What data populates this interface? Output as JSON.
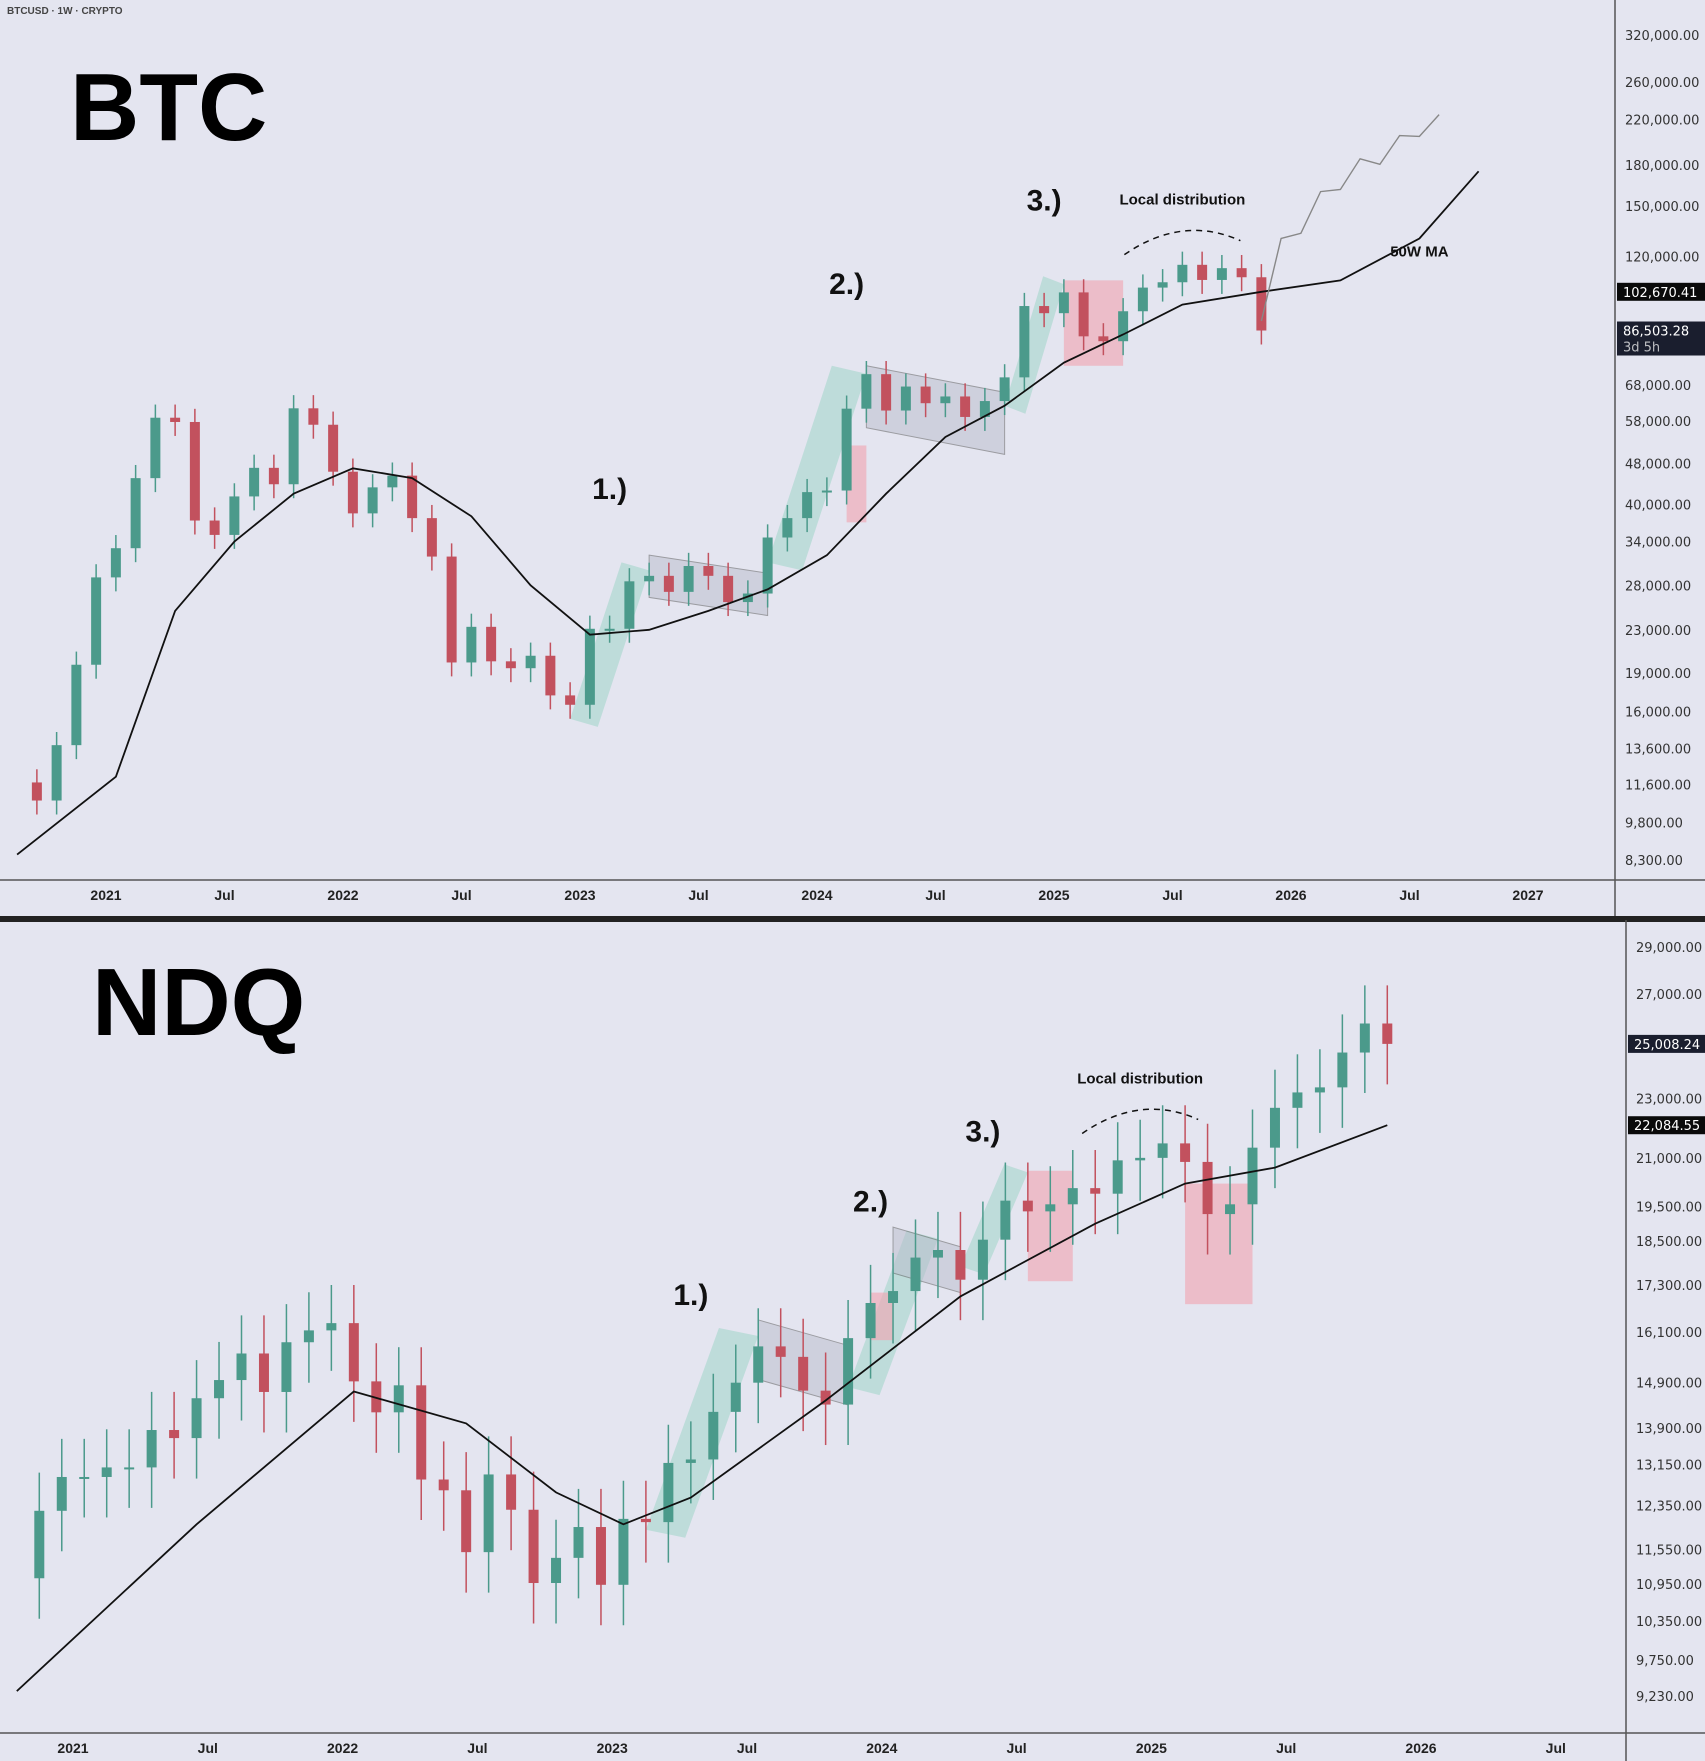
{
  "header": "BTCUSD · 1W · CRYPTO",
  "colors": {
    "bg": "#e4e5f0",
    "up": "#4b9a8b",
    "down": "#c2515e",
    "ma": "#111111",
    "projection": "#888888",
    "green_zone": "#9fd6c9",
    "red_zone": "#f0a8b4",
    "channel": "#b9bccb"
  },
  "chart_data": [
    {
      "type": "candlestick",
      "title": "BTC",
      "scale": "log",
      "ylim": [
        8300,
        340000
      ],
      "xlim": [
        "2020-08",
        "2027-04"
      ],
      "yticks": [
        "320,000.00",
        "260,000.00",
        "220,000.00",
        "180,000.00",
        "150,000.00",
        "120,000.00",
        "68,000.00",
        "58,000.00",
        "48,000.00",
        "40,000.00",
        "34,000.00",
        "28,000.00",
        "23,000.00",
        "19,000.00",
        "16,000.00",
        "13,600.00",
        "11,600.00",
        "9,800.00",
        "8,300.00"
      ],
      "xticks": [
        "2021",
        "Jul",
        "2022",
        "Jul",
        "2023",
        "Jul",
        "2024",
        "Jul",
        "2025",
        "Jul",
        "2026",
        "Jul",
        "2027"
      ],
      "price_labels": [
        {
          "text": "102,670.41",
          "value": 102670.41,
          "style": "ma"
        },
        {
          "text": "86,503.28",
          "sub": "3d 5h",
          "value": 86503.28,
          "style": "last"
        }
      ],
      "series": [
        {
          "x": [
            "2020-08",
            "2020-09",
            "2020-10",
            "2020-11",
            "2020-12",
            "2021-01",
            "2021-02",
            "2021-03",
            "2021-04",
            "2021-05",
            "2021-06",
            "2021-07",
            "2021-08",
            "2021-09",
            "2021-10",
            "2021-11",
            "2021-12",
            "2022-01",
            "2022-02",
            "2022-03",
            "2022-04",
            "2022-05",
            "2022-06",
            "2022-07",
            "2022-08",
            "2022-09",
            "2022-10",
            "2022-11",
            "2022-12",
            "2023-01",
            "2023-02",
            "2023-03",
            "2023-04",
            "2023-05",
            "2023-06",
            "2023-07",
            "2023-08",
            "2023-09",
            "2023-10",
            "2023-11",
            "2023-12",
            "2024-01",
            "2024-02",
            "2024-03",
            "2024-04",
            "2024-05",
            "2024-06",
            "2024-07",
            "2024-08",
            "2024-09",
            "2024-10",
            "2024-11",
            "2024-12",
            "2025-01",
            "2025-02",
            "2025-03",
            "2025-04",
            "2025-05",
            "2025-06",
            "2025-07",
            "2025-08",
            "2025-09",
            "2025-10",
            "2025-11"
          ],
          "close": [
            11700,
            10800,
            13800,
            19700,
            29000,
            33000,
            45000,
            58800,
            57700,
            37300,
            35000,
            41500,
            47100,
            43800,
            61300,
            57000,
            46300,
            38500,
            43200,
            45500,
            37700,
            31800,
            19900,
            23300,
            20000,
            19400,
            20500,
            17200,
            16500,
            23100,
            23100,
            28500,
            29200,
            27200,
            30500,
            29200,
            26000,
            27000,
            34600,
            37700,
            42300,
            42600,
            61200,
            71300,
            60700,
            67500,
            62700,
            64600,
            59000,
            63300,
            70300,
            96400,
            93400,
            102400,
            84300,
            82500,
            94200,
            104600,
            107100,
            115700,
            108200,
            114000,
            109500,
            86503
          ]
        },
        {
          "name": "50W MA",
          "x": [
            "2020-08",
            "2021-01",
            "2021-04",
            "2021-07",
            "2021-10",
            "2022-01",
            "2022-04",
            "2022-07",
            "2022-10",
            "2023-01",
            "2023-04",
            "2023-07",
            "2023-10",
            "2024-01",
            "2024-04",
            "2024-07",
            "2024-10",
            "2025-01",
            "2025-04",
            "2025-07",
            "2025-11",
            "2026-03",
            "2026-07",
            "2026-10"
          ],
          "values": [
            8500,
            12000,
            25000,
            34000,
            42000,
            47000,
            45000,
            38000,
            28000,
            22500,
            23000,
            25000,
            27500,
            32000,
            42000,
            54000,
            62000,
            75000,
            85000,
            97000,
            102670,
            108000,
            130000,
            175000
          ]
        },
        {
          "x": [
            "2025-11",
            "2025-12",
            "2026-01",
            "2026-02",
            "2026-03",
            "2026-04",
            "2026-05",
            "2026-06",
            "2026-07",
            "2026-08"
          ],
          "values": [
            95000,
            130000,
            140000,
            160000,
            170000,
            185000,
            190000,
            205000,
            215000,
            225000
          ]
        }
      ],
      "annotations": [
        {
          "text": "1.)",
          "x": "2023-02",
          "y": 41000
        },
        {
          "text": "2.)",
          "x": "2024-02",
          "y": 101600
        },
        {
          "text": "3.)",
          "x": "2024-12",
          "y": 147000
        },
        {
          "text": "Local distribution",
          "x": "2025-07",
          "y": 151000
        },
        {
          "text": "50W MA",
          "x": "2026-07",
          "y": 120000
        }
      ],
      "zones": [
        {
          "kind": "green",
          "x": [
            "2022-12",
            "2023-04"
          ],
          "y": [
            15500,
            31000
          ]
        },
        {
          "kind": "channel",
          "x": [
            "2023-04",
            "2023-10"
          ],
          "y": [
            24500,
            32000
          ]
        },
        {
          "kind": "green",
          "x": [
            "2023-10",
            "2024-03"
          ],
          "y": [
            31000,
            74000
          ]
        },
        {
          "kind": "red",
          "x": [
            "2024-02",
            "2024-03"
          ],
          "y": [
            37000,
            52000
          ]
        },
        {
          "kind": "channel",
          "x": [
            "2024-03",
            "2024-10"
          ],
          "y": [
            50000,
            74000
          ]
        },
        {
          "kind": "green",
          "x": [
            "2024-10",
            "2025-01"
          ],
          "y": [
            62000,
            110000
          ]
        },
        {
          "kind": "red",
          "x": [
            "2025-01",
            "2025-04"
          ],
          "y": [
            74000,
            108000
          ]
        }
      ]
    },
    {
      "type": "candlestick",
      "title": "NDQ",
      "scale": "log",
      "ylim": [
        8800,
        30500
      ],
      "xlim": [
        "2020-10",
        "2026-12"
      ],
      "yticks": [
        "29,000.00",
        "27,000.00",
        "23,000.00",
        "21,000.00",
        "19,500.00",
        "18,500.00",
        "17,300.00",
        "16,100.00",
        "14,900.00",
        "13,900.00",
        "13,150.00",
        "12,350.00",
        "11,550.00",
        "10,950.00",
        "10,350.00",
        "9,750.00",
        "9,230.00"
      ],
      "xticks": [
        "2021",
        "Jul",
        "2022",
        "Jul",
        "2023",
        "Jul",
        "2024",
        "Jul",
        "2025",
        "Jul",
        "2026",
        "Jul"
      ],
      "price_labels": [
        {
          "text": "25,008.24",
          "value": 25008.24,
          "style": "last"
        },
        {
          "text": "22,084.55",
          "value": 22084.55,
          "style": "ma"
        }
      ],
      "series": [
        {
          "x": [
            "2020-10",
            "2020-11",
            "2020-12",
            "2021-01",
            "2021-02",
            "2021-03",
            "2021-04",
            "2021-05",
            "2021-06",
            "2021-07",
            "2021-08",
            "2021-09",
            "2021-10",
            "2021-11",
            "2021-12",
            "2022-01",
            "2022-02",
            "2022-03",
            "2022-04",
            "2022-05",
            "2022-06",
            "2022-07",
            "2022-08",
            "2022-09",
            "2022-10",
            "2022-11",
            "2022-12",
            "2023-01",
            "2023-02",
            "2023-03",
            "2023-04",
            "2023-05",
            "2023-06",
            "2023-07",
            "2023-08",
            "2023-09",
            "2023-10",
            "2023-11",
            "2023-12",
            "2024-01",
            "2024-02",
            "2024-03",
            "2024-04",
            "2024-05",
            "2024-06",
            "2024-07",
            "2024-08",
            "2024-09",
            "2024-10",
            "2024-11",
            "2024-12",
            "2025-01",
            "2025-02",
            "2025-03",
            "2025-04",
            "2025-05",
            "2025-06",
            "2025-07",
            "2025-08",
            "2025-09",
            "2025-10",
            "2025-11"
          ],
          "close": [
            11050,
            12250,
            12900,
            12900,
            13090,
            13090,
            13860,
            13690,
            14550,
            14960,
            15580,
            14690,
            15850,
            16140,
            16320,
            14930,
            14240,
            14840,
            12850,
            12640,
            11500,
            12950,
            12270,
            10970,
            11400,
            11950,
            10940,
            12100,
            12040,
            13180,
            13250,
            14250,
            14900,
            15750,
            15500,
            14720,
            14410,
            15950,
            16830,
            17140,
            18040,
            18250,
            17440,
            18540,
            19680,
            19360,
            19570,
            20060,
            19890,
            20930,
            21010,
            21480,
            20880,
            19280,
            19570,
            21340,
            22680,
            23220,
            23400,
            24680,
            25800,
            25008
          ]
        },
        {
          "name": "50W MA",
          "x": [
            "2020-10",
            "2021-06",
            "2022-01",
            "2022-06",
            "2022-10",
            "2023-01",
            "2023-04",
            "2023-10",
            "2024-04",
            "2024-10",
            "2025-02",
            "2025-06",
            "2025-11"
          ],
          "values": [
            9300,
            12000,
            14700,
            14000,
            12600,
            12000,
            12500,
            14500,
            17000,
            19000,
            20200,
            20700,
            22084
          ]
        }
      ],
      "annotations": [
        {
          "text": "1.)",
          "x": "2023-04",
          "y": 16780
        },
        {
          "text": "2.)",
          "x": "2023-12",
          "y": 19360
        },
        {
          "text": "3.)",
          "x": "2024-05",
          "y": 21550
        },
        {
          "text": "Local distribution",
          "x": "2024-12",
          "y": 23540
        }
      ],
      "zones": [
        {
          "kind": "green",
          "x": [
            "2023-02",
            "2023-07"
          ],
          "y": [
            11900,
            16200
          ]
        },
        {
          "kind": "channel",
          "x": [
            "2023-07",
            "2023-11"
          ],
          "y": [
            14400,
            16400
          ]
        },
        {
          "kind": "green",
          "x": [
            "2023-11",
            "2024-03"
          ],
          "y": [
            14800,
            18800
          ]
        },
        {
          "kind": "red",
          "x": [
            "2023-12",
            "2024-01"
          ],
          "y": [
            15900,
            17100
          ]
        },
        {
          "kind": "channel",
          "x": [
            "2024-01",
            "2024-04"
          ],
          "y": [
            17100,
            18900
          ]
        },
        {
          "kind": "green",
          "x": [
            "2024-04",
            "2024-07"
          ],
          "y": [
            17800,
            20800
          ]
        },
        {
          "kind": "red",
          "x": [
            "2024-07",
            "2024-09"
          ],
          "y": [
            17400,
            20600
          ]
        },
        {
          "kind": "red",
          "x": [
            "2025-02",
            "2025-05"
          ],
          "y": [
            16800,
            20200
          ]
        }
      ]
    }
  ]
}
